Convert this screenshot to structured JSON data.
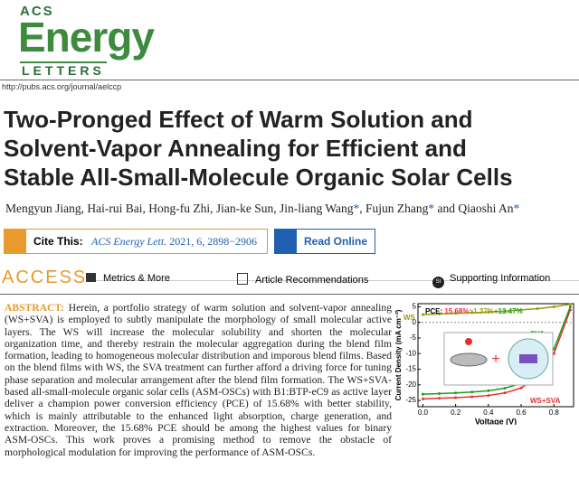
{
  "header": {
    "logo_top": "ACS",
    "logo_main": "Energy",
    "logo_bottom": "LETTERS",
    "url": "http://pubs.acs.org/journal/aelccp"
  },
  "title_lines": [
    "Two-Pronged Effect of Warm Solution and",
    "Solvent-Vapor Annealing for Efficient and",
    "Stable All-Small-Molecule Organic Solar Cells"
  ],
  "authors": [
    {
      "name": "Mengyun Jiang",
      "sep": ", "
    },
    {
      "name": "Hai-rui Bai",
      "sep": ", "
    },
    {
      "name": "Hong-fu Zhi",
      "sep": ", "
    },
    {
      "name": "Jian-ke Sun",
      "sep": ", "
    },
    {
      "name": "Jin-liang Wang",
      "mark": "*",
      "sep": ", "
    },
    {
      "name": "Fujun Zhang",
      "mark": "*",
      "sep": " and "
    },
    {
      "name": "Qiaoshi An",
      "mark": "*"
    }
  ],
  "cite": {
    "label": "Cite This:",
    "journal": "ACS Energy Lett.",
    "rest": " 2021, 6, 2898−2906",
    "read": "Read Online"
  },
  "access": {
    "label": "ACCESS",
    "buttons": [
      "Metrics & More",
      "Article Recommendations",
      "Supporting Information"
    ],
    "si_icon": "SI"
  },
  "abstract": {
    "label": "ABSTRACT:",
    "text": "Herein, a portfolio strategy of warm solution and solvent-vapor annealing (WS+SVA) is employed to subtly manipulate the morphology of small molecular active layers. The WS will increase the molecular solubility and shorten the molecular organization time, and thereby restrain the molecular aggregation during the blend film formation, leading to homogeneous molecular distribution and imporous blend films. Based on the blend films with WS, the SVA treatment can further afford a driving force for tuning phase separation and molecular arrangement after the blend film formation. The WS+SVA-based all-small-molecule organic solar cells (ASM-OSCs) with B1:BTP-eC9 as active layer deliver a champion power conversion efficiency (PCE) of 15.68% with better stability, which is mainly attributable to the enhanced light absorption, charge generation, and extraction. Moreover, the 15.68% PCE should be among the highest values for binary ASM-OSCs. This work proves a promising method to remove the obstacle of morphological modulation for improving the performance of ASM-OSCs."
  },
  "graphic": {
    "type": "line",
    "xlabel": "Voltage (V)",
    "ylabel": "Current Density (mA cm⁻²)",
    "pce": [
      {
        "text": "PCE: ",
        "color": "#000000"
      },
      {
        "text": "15.68%",
        "color": "#e53030"
      },
      {
        "text": ">1.37%",
        "color": "#9a9a10"
      },
      {
        "text": "+13.47%",
        "color": "#1aa01a"
      }
    ],
    "x": [
      0,
      0.1,
      0.2,
      0.3,
      0.4,
      0.5,
      0.6,
      0.7,
      0.8,
      0.9
    ],
    "series": [
      {
        "name": "WS+SVA",
        "color": "#e53030",
        "values": [
          -24.5,
          -24.3,
          -24.1,
          -23.8,
          -23.4,
          -22.6,
          -21,
          -17.5,
          -10,
          4
        ]
      },
      {
        "name": "SVA",
        "color": "#1aa01a",
        "values": [
          -23,
          -22.8,
          -22.6,
          -22.3,
          -21.9,
          -21.1,
          -19.5,
          -16,
          -8.5,
          5
        ]
      },
      {
        "name": "WS",
        "color": "#9a9a10",
        "values": [
          2.5,
          2.7,
          2.9,
          3.1,
          3.3,
          3.6,
          4,
          4.4,
          5,
          5.8
        ]
      }
    ],
    "xlim": [
      -0.03,
      0.92
    ],
    "ylim": [
      -27,
      6
    ],
    "xticks": [
      {
        "value": 0,
        "label": "0.0"
      },
      0.2,
      0.4,
      0.6,
      0.8
    ],
    "yticks": [
      5,
      0,
      -5,
      -10,
      -15,
      -20,
      -25
    ]
  }
}
